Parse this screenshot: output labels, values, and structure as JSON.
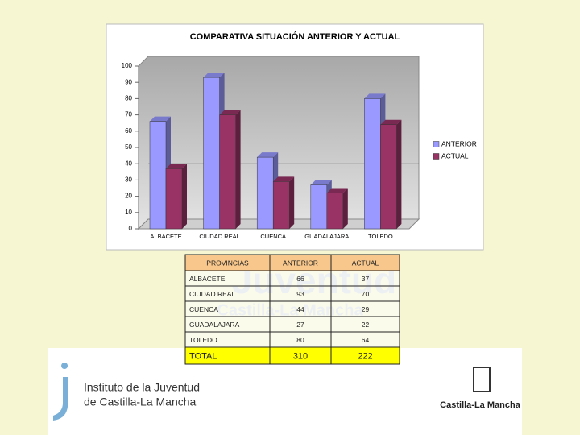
{
  "chart_data": {
    "type": "bar3d",
    "title": "COMPARATIVA SITUACIÓN ANTERIOR Y ACTUAL",
    "categories": [
      "ALBACETE",
      "CIUDAD REAL",
      "CUENCA",
      "GUADALAJARA",
      "TOLEDO"
    ],
    "series": [
      {
        "name": "ANTERIOR",
        "color": "#9999ff",
        "values": [
          66,
          93,
          44,
          27,
          80
        ]
      },
      {
        "name": "ACTUAL",
        "color": "#993366",
        "values": [
          37,
          70,
          29,
          22,
          64
        ]
      }
    ],
    "ylim": [
      0,
      100
    ],
    "yticks": [
      0,
      10,
      20,
      30,
      40,
      50,
      60,
      70,
      80,
      90,
      100
    ],
    "reference_line": 34,
    "legend": "right"
  },
  "table": {
    "header": [
      "PROVINCIAS",
      "ANTERIOR",
      "ACTUAL"
    ],
    "rows": [
      [
        "ALBACETE",
        "66",
        "37"
      ],
      [
        "CIUDAD REAL",
        "93",
        "70"
      ],
      [
        "CUENCA",
        "44",
        "29"
      ],
      [
        "GUADALAJARA",
        "27",
        "22"
      ],
      [
        "TOLEDO",
        "80",
        "64"
      ]
    ],
    "total": [
      "TOTAL",
      "310",
      "222"
    ]
  },
  "watermark": [
    "Juventud",
    "Castilla-La Mancha"
  ],
  "footer": {
    "left_logo": [
      "Instituto de la Juventud",
      "de Castilla-La Mancha"
    ],
    "right_logo": "Castilla-La Mancha"
  }
}
